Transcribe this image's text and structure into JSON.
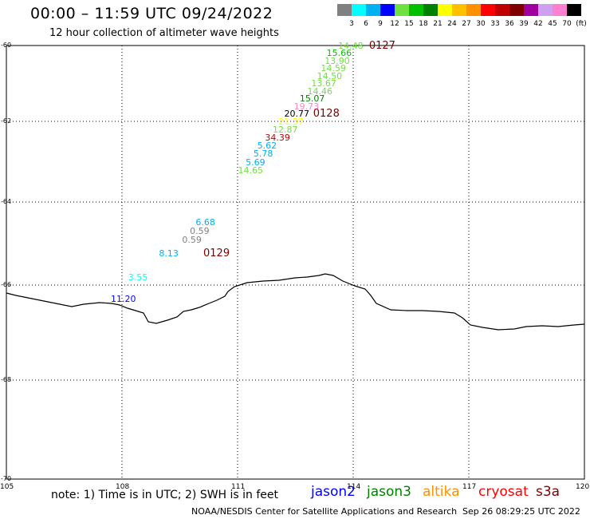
{
  "header": {
    "title": "00:00 – 11:59 UTC 09/24/2022",
    "subtitle": "12 hour collection of altimeter wave heights"
  },
  "colorbar": {
    "labels": [
      "3",
      "6",
      "9",
      "12",
      "15",
      "18",
      "21",
      "24",
      "27",
      "30",
      "33",
      "36",
      "39",
      "42",
      "45",
      "70",
      "(ft)"
    ],
    "colors": [
      "#808080",
      "#00ffff",
      "#00b0f0",
      "#0000ff",
      "#70e040",
      "#00c000",
      "#008000",
      "#ffff00",
      "#ffc000",
      "#ff9000",
      "#ff0000",
      "#c00000",
      "#800000",
      "#a000a0",
      "#d0a0f0",
      "#ff80d0",
      "#000000"
    ]
  },
  "axes": {
    "lat_labels": [
      "-60",
      "-62",
      "-64",
      "-66",
      "-68",
      "-70"
    ],
    "lon_labels": [
      "105",
      "108",
      "111",
      "114",
      "117",
      "120"
    ],
    "lat_range": [
      -60,
      -70
    ],
    "lon_range": [
      105,
      120
    ],
    "grid": "dotted"
  },
  "coast_icon": "coastline-line",
  "observations": [
    {
      "v": "14.48",
      "c": "#70e040",
      "lon": 113.9,
      "lat": -60.02
    },
    {
      "v": "15.66",
      "c": "#00c000",
      "lon": 113.6,
      "lat": -60.22
    },
    {
      "v": "13.90",
      "c": "#70e040",
      "lon": 113.55,
      "lat": -60.42
    },
    {
      "v": "14.59",
      "c": "#70e040",
      "lon": 113.45,
      "lat": -60.62
    },
    {
      "v": "14.50",
      "c": "#70e040",
      "lon": 113.35,
      "lat": -60.82
    },
    {
      "v": "13.67",
      "c": "#70e040",
      "lon": 113.2,
      "lat": -61.02
    },
    {
      "v": "14.46",
      "c": "#70e040",
      "lon": 113.1,
      "lat": -61.22
    },
    {
      "v": "15.07",
      "c": "#008000",
      "lon": 112.9,
      "lat": -61.42
    },
    {
      "v": "19.73",
      "c": "#ff80d0",
      "lon": 112.75,
      "lat": -61.62
    },
    {
      "v": "20.77",
      "c": "#000000",
      "lon": 112.5,
      "lat": -61.8
    },
    {
      "v": "21.37",
      "c": "#ffff00",
      "lon": 112.35,
      "lat": -62.02
    },
    {
      "v": "12.87",
      "c": "#70e040",
      "lon": 112.2,
      "lat": -62.22
    },
    {
      "v": "34.39",
      "c": "#c00000",
      "lon": 112.0,
      "lat": -62.42
    },
    {
      "v": "5.62",
      "c": "#00b0f0",
      "lon": 111.8,
      "lat": -62.62
    },
    {
      "v": "5.78",
      "c": "#00b0f0",
      "lon": 111.7,
      "lat": -62.82
    },
    {
      "v": "5.69",
      "c": "#00b0f0",
      "lon": 111.5,
      "lat": -63.02
    },
    {
      "v": "14.65",
      "c": "#70e040",
      "lon": 111.3,
      "lat": -63.22
    },
    {
      "v": "6.68",
      "c": "#00b0f0",
      "lon": 110.2,
      "lat": -64.5
    },
    {
      "v": "0.59",
      "c": "#808080",
      "lon": 110.05,
      "lat": -64.72
    },
    {
      "v": "0.59",
      "c": "#808080",
      "lon": 109.85,
      "lat": -64.92
    },
    {
      "v": "8.13",
      "c": "#00b0f0",
      "lon": 109.25,
      "lat": -65.25
    },
    {
      "v": "3.55",
      "c": "#00ffff",
      "lon": 108.45,
      "lat": -65.82
    },
    {
      "v": "11.20",
      "c": "#0000ff",
      "lon": 108.0,
      "lat": -66.3
    }
  ],
  "passes": [
    {
      "id": "0127",
      "lon": 114.7,
      "lat": -60.02
    },
    {
      "id": "0128",
      "lon": 113.25,
      "lat": -61.8
    },
    {
      "id": "0129",
      "lon": 110.4,
      "lat": -65.25
    }
  ],
  "footer": {
    "note": "note: 1) Time is in UTC; 2) SWH is in feet",
    "credit": "NOAA/NESDIS Center for Satellite Applications and Research",
    "timestamp": "Sep 26 08:29:25 UTC 2022"
  },
  "legend": [
    {
      "name": "jason2",
      "color": "#0000ff"
    },
    {
      "name": "jason3",
      "color": "#008000"
    },
    {
      "name": "altika",
      "color": "#ff9000"
    },
    {
      "name": "cryosat",
      "color": "#ff0000"
    },
    {
      "name": "s3a",
      "color": "#800000"
    }
  ]
}
